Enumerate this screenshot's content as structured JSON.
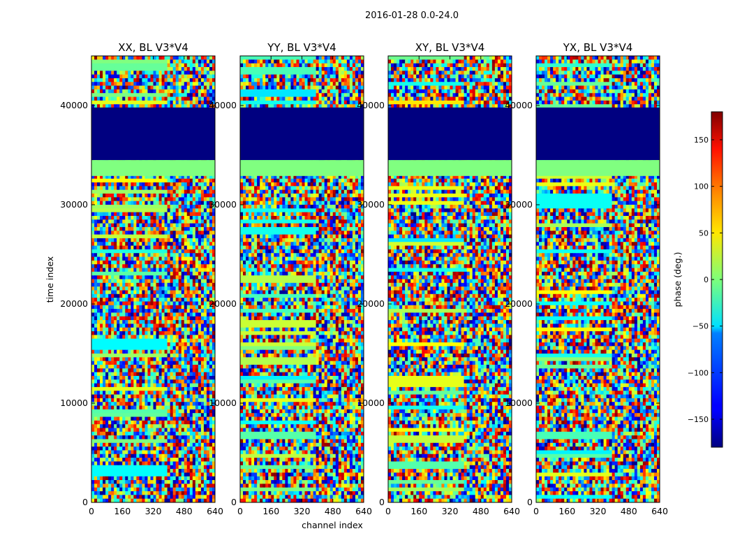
{
  "figure": {
    "suptitle": "2016-01-28 0.0-24.0"
  },
  "chart_data": {
    "type": "heatmap",
    "suptitle": "2016-01-28 0.0-24.0",
    "xlabel": "channel index",
    "ylabel": "time index",
    "xlim": [
      0,
      640
    ],
    "ylim": [
      0,
      45000
    ],
    "xticks": [
      0,
      160,
      320,
      480,
      640
    ],
    "yticks": [
      0,
      10000,
      20000,
      30000,
      40000
    ],
    "colormap": "jet",
    "panels": [
      {
        "title": "XX, BL V3*V4",
        "flat_bands": [
          {
            "from": 34500,
            "to": 39800,
            "value": -180
          },
          {
            "from": 32900,
            "to": 34500,
            "value": 0
          }
        ]
      },
      {
        "title": "YY, BL V3*V4",
        "flat_bands": [
          {
            "from": 34500,
            "to": 39800,
            "value": -180
          },
          {
            "from": 32900,
            "to": 34500,
            "value": 0
          }
        ]
      },
      {
        "title": "XY, BL V3*V4",
        "flat_bands": [
          {
            "from": 34500,
            "to": 39800,
            "value": -180
          },
          {
            "from": 32900,
            "to": 34500,
            "value": 0
          }
        ]
      },
      {
        "title": "YX, BL V3*V4",
        "flat_bands": [
          {
            "from": 34500,
            "to": 39800,
            "value": -180
          },
          {
            "from": 32900,
            "to": 34500,
            "value": 0
          }
        ]
      }
    ],
    "colorbar": {
      "label": "phase (deg.)",
      "range": [
        -180,
        180
      ],
      "ticks": [
        150,
        100,
        50,
        0,
        -50,
        -100,
        -150
      ],
      "tick_labels": [
        "150",
        "100",
        "50",
        "0",
        "−50",
        "−100",
        "−150"
      ]
    }
  }
}
